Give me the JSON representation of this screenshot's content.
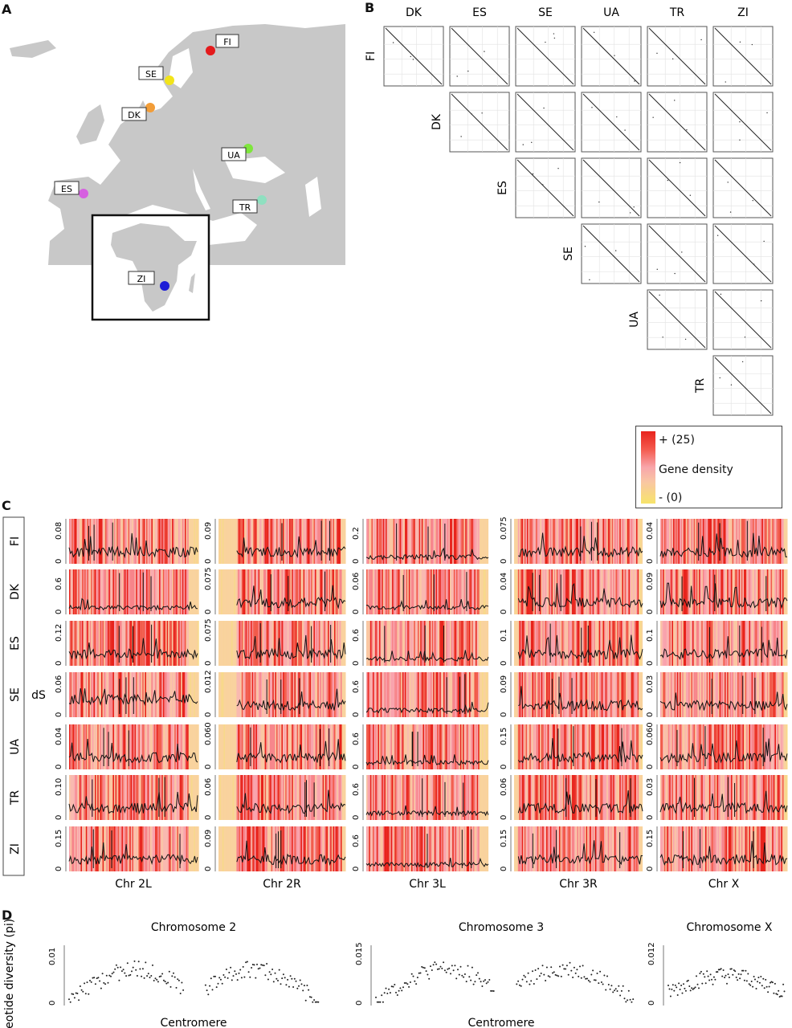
{
  "panels": {
    "A": "A",
    "B": "B",
    "C": "C",
    "D": "D"
  },
  "colors": {
    "land": "#c8c8c8",
    "sea": "#ffffff",
    "FI": "#e41a1c",
    "SE": "#f2e41a",
    "DK": "#f29d38",
    "UA": "#7ee63c",
    "ES": "#d660e0",
    "TR": "#8fe0c0",
    "ZI": "#1d1dd6"
  },
  "map": {
    "sites": [
      {
        "code": "FI"
      },
      {
        "code": "SE"
      },
      {
        "code": "DK"
      },
      {
        "code": "UA"
      },
      {
        "code": "ES"
      },
      {
        "code": "TR"
      },
      {
        "code": "ZI"
      }
    ]
  },
  "matrix": {
    "columns": [
      "DK",
      "ES",
      "SE",
      "UA",
      "TR",
      "ZI"
    ],
    "rows": [
      "FI",
      "DK",
      "ES",
      "SE",
      "UA",
      "TR"
    ]
  },
  "legend": {
    "top": "+ (25)",
    "middle": "Gene density",
    "bottom": "- (0)"
  },
  "chart_data": [
    {
      "type": "line",
      "title": "",
      "ylabel": "dS",
      "columns": [
        "Chr 2L",
        "Chr 2R",
        "Chr 3L",
        "Chr 3R",
        "Chr X"
      ],
      "rows": [
        "FI",
        "DK",
        "ES",
        "SE",
        "UA",
        "TR",
        "ZI"
      ],
      "ticks": [
        [
          [
            "0",
            "0.08"
          ],
          [
            "0",
            "0.09"
          ],
          [
            "0",
            "0.2"
          ],
          [
            "0",
            "0.075"
          ],
          [
            "0",
            "0.04"
          ]
        ],
        [
          [
            "0",
            "0.6"
          ],
          [
            "0",
            "0.075"
          ],
          [
            "0",
            "0.06"
          ],
          [
            "0",
            "0.04"
          ],
          [
            "0",
            "0.09"
          ]
        ],
        [
          [
            "0",
            "0.12"
          ],
          [
            "0",
            "0.075"
          ],
          [
            "0",
            "0.6"
          ],
          [
            "0",
            "0.1"
          ],
          [
            "0",
            "0.1"
          ]
        ],
        [
          [
            "0",
            "0.06"
          ],
          [
            "0",
            "0.012"
          ],
          [
            "0",
            "0.6"
          ],
          [
            "0",
            "0.09"
          ],
          [
            "0",
            "0.03"
          ]
        ],
        [
          [
            "0",
            "0.04"
          ],
          [
            "0",
            "0.060"
          ],
          [
            "0",
            "0.6"
          ],
          [
            "0",
            "0.15"
          ],
          [
            "0",
            "0.060"
          ]
        ],
        [
          [
            "0",
            "0.10"
          ],
          [
            "0",
            "0.06"
          ],
          [
            "0",
            "0.6"
          ],
          [
            "0",
            "0.06"
          ],
          [
            "0",
            "0.03"
          ]
        ],
        [
          [
            "0",
            "0.15"
          ],
          [
            "0",
            "0.09"
          ],
          [
            "0",
            "0.6"
          ],
          [
            "0",
            "0.15"
          ],
          [
            "0",
            "0.15"
          ]
        ]
      ]
    },
    {
      "type": "scatter",
      "ylabel": "nucleotide diversity (pi)",
      "charts": [
        {
          "title": "Chromosome 2",
          "xlabel": "Centromere",
          "yticks": [
            "0",
            "0.01"
          ],
          "ylim": [
            0,
            0.014
          ]
        },
        {
          "title": "Chromosome 3",
          "xlabel": "Centromere",
          "yticks": [
            "0",
            "0.015"
          ],
          "ylim": [
            0,
            0.02
          ]
        },
        {
          "title": "Chromosome X",
          "xlabel": "",
          "yticks": [
            "0",
            "0.012"
          ],
          "ylim": [
            0,
            0.015
          ]
        }
      ]
    }
  ]
}
